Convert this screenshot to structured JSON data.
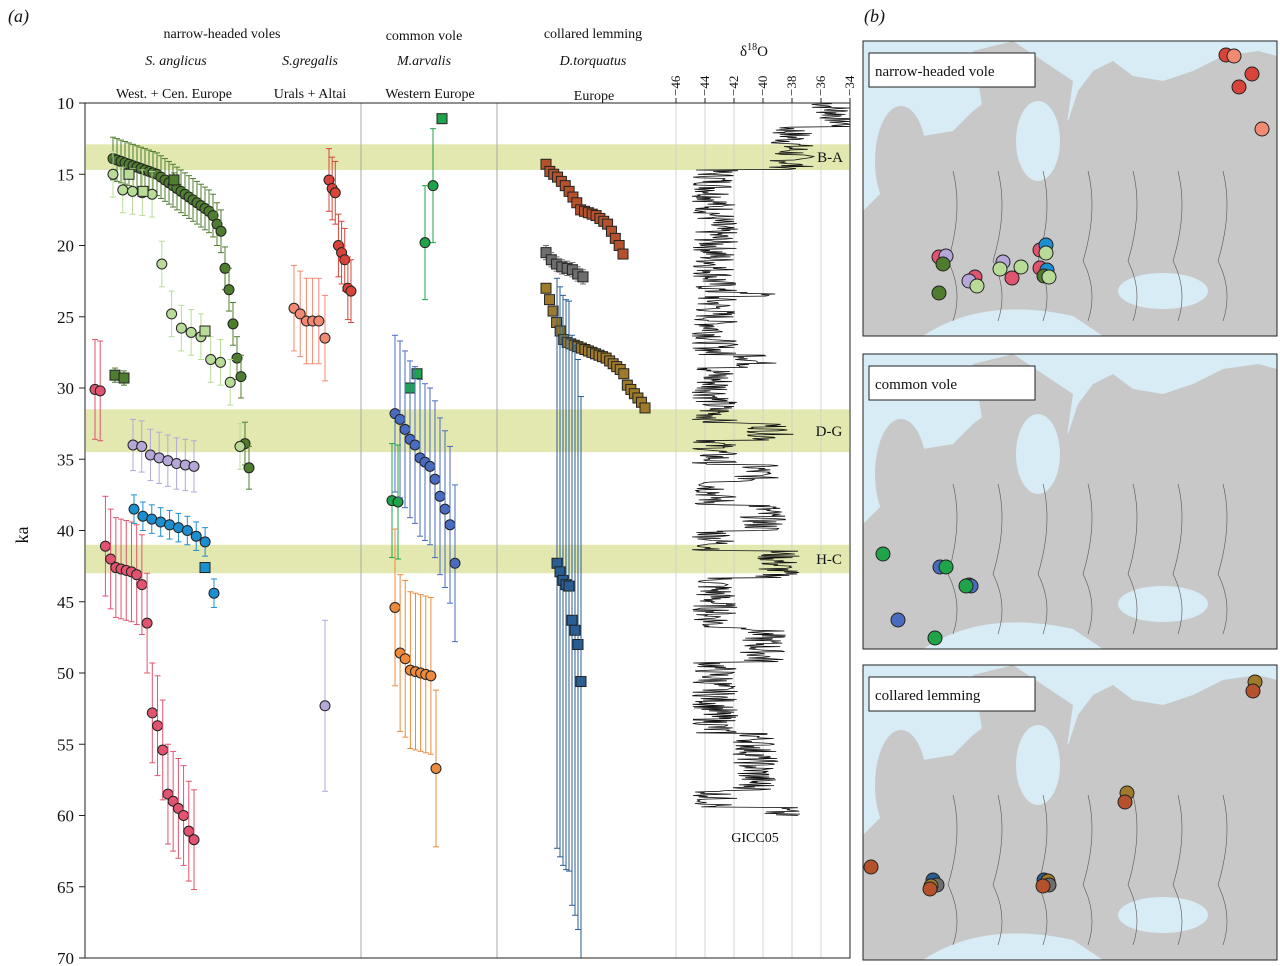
{
  "panel_a_label": "(a)",
  "panel_b_label": "(b)",
  "headers": {
    "narrow_group": "narrow-headed voles",
    "common_group": "common vole",
    "lemming_group": "collared lemming",
    "sp_anglicus": "S. anglicus",
    "sp_gregalis": "S.gregalis",
    "sp_arvalis": "M.arvalis",
    "sp_torquatus": "D.torquatus",
    "reg_anglicus": "West. + Cen. Europe",
    "reg_gregalis": "Urals + Altai",
    "reg_arvalis": "Western Europe",
    "reg_torquatus": "Europe",
    "d18o_title_main": "δ",
    "d18o_title_sup": "18",
    "d18o_title_end": "O",
    "gicc": "GICC05"
  },
  "map_labels": {
    "narrow": "narrow-headed vole",
    "common": "common vole",
    "lemming": "collared lemming"
  },
  "colors": {
    "green_dark": "#4f7d2f",
    "green_light": "#b8dc98",
    "pink": "#e0546f",
    "lavender": "#b5a7d8",
    "blue": "#1c8fd0",
    "red": "#d8443a",
    "salmon": "#f08a72",
    "green": "#1fa44a",
    "royal": "#4a6cc0",
    "orange": "#ee8a3c",
    "rust": "#b5522c",
    "grey": "#6e6e6e",
    "olive": "#9e7a2a",
    "navy": "#2a5d92",
    "band": "#dfe6a6",
    "sea": "#d7ecf4",
    "land": "#c8c8c8"
  },
  "chart_data": {
    "type": "scatter",
    "ylabel": "ka",
    "ylim": [
      70,
      10
    ],
    "yticks": [
      10,
      15,
      20,
      25,
      30,
      35,
      40,
      45,
      50,
      55,
      60,
      65,
      70
    ],
    "d18o_axis": {
      "label": "δ18O",
      "range": [
        -46,
        -34
      ],
      "ticks": [
        -46,
        -44,
        -42,
        -40,
        -38,
        -36,
        -34
      ],
      "record": "GICC05"
    },
    "events": [
      {
        "label": "B-A",
        "from": 12.9,
        "to": 14.7
      },
      {
        "label": "D-G",
        "from": 31.5,
        "to": 34.5
      },
      {
        "label": "H-C",
        "from": 41.0,
        "to": 43.0
      }
    ],
    "series": [
      {
        "name": "S. anglicus",
        "group": "narrow-headed voles",
        "region": "West. + Cen. Europe",
        "color": "#4f7d2f",
        "shape": "circle",
        "ages": [
          13.9,
          14.0,
          14.1,
          14.2,
          14.3,
          14.4,
          14.5,
          14.6,
          14.7,
          14.8,
          14.9,
          15.0,
          15.2,
          15.4,
          15.6,
          15.8,
          16.0,
          16.2,
          16.4,
          16.6,
          16.8,
          17.0,
          17.2,
          17.4,
          17.6,
          17.9,
          18.5,
          19.0,
          21.6,
          23.1,
          25.5,
          27.9,
          29.2,
          33.9,
          35.6
        ],
        "err": 1.5
      },
      {
        "name": "S. anglicus",
        "group": "narrow-headed voles",
        "region": "West. + Cen. Europe",
        "color": "#4f7d2f",
        "shape": "square",
        "ages": [
          15.4,
          29.1,
          29.3
        ],
        "err": 0.5
      },
      {
        "name": "S. anglicus",
        "group": "narrow-headed voles",
        "region": "West. + Cen. Europe",
        "color": "#b8dc98",
        "shape": "circle",
        "ages": [
          15.0,
          16.1,
          16.2,
          16.3,
          16.4,
          21.3,
          24.8,
          25.8,
          26.1,
          26.4,
          28.0,
          28.2,
          29.6,
          34.1
        ],
        "err": 1.6
      },
      {
        "name": "S. anglicus",
        "group": "narrow-headed voles",
        "region": "West. + Cen. Europe",
        "color": "#b8dc98",
        "shape": "square",
        "ages": [
          15.0,
          16.2,
          26.0
        ],
        "err": 0.3
      },
      {
        "name": "S. anglicus",
        "group": "narrow-headed voles",
        "region": "West. + Cen. Europe",
        "color": "#e0546f",
        "shape": "circle",
        "ages": [
          30.1,
          30.2,
          41.1,
          42.0,
          42.6,
          42.7,
          42.8,
          42.9,
          43.1,
          43.8,
          46.5,
          52.8,
          53.7,
          55.4,
          58.5,
          59.0,
          59.5,
          60.0,
          61.1,
          61.7
        ],
        "err": 3.5
      },
      {
        "name": "S. anglicus",
        "group": "narrow-headed voles",
        "region": "West. + Cen. Europe",
        "color": "#b5a7d8",
        "shape": "circle",
        "ages": [
          34.0,
          34.1,
          34.7,
          34.9,
          35.1,
          35.3,
          35.4,
          35.5
        ],
        "err": 1.8
      },
      {
        "name": "S. anglicus",
        "group": "narrow-headed voles",
        "region": "West. + Cen. Europe",
        "color": "#1c8fd0",
        "shape": "circle",
        "ages": [
          38.5,
          39.0,
          39.2,
          39.4,
          39.6,
          39.8,
          40.0,
          40.4,
          40.8,
          44.4
        ],
        "err": 1.0
      },
      {
        "name": "S. anglicus",
        "group": "narrow-headed voles",
        "region": "West. + Cen. Europe",
        "color": "#1c8fd0",
        "shape": "square",
        "ages": [
          42.6
        ],
        "err": 0.2
      },
      {
        "name": "S.gregalis",
        "group": "narrow-headed voles",
        "region": "Urals + Altai",
        "color": "#d8443a",
        "shape": "circle",
        "ages": [
          15.4,
          16.0,
          16.3,
          20.0,
          20.5,
          21.0,
          23.0,
          23.2
        ],
        "err": 2.2
      },
      {
        "name": "S.gregalis",
        "group": "narrow-headed voles",
        "region": "Urals + Altai",
        "color": "#f08a72",
        "shape": "circle",
        "ages": [
          24.4,
          24.8,
          25.3,
          25.3,
          25.3,
          26.5
        ],
        "err": 3.0
      },
      {
        "name": "S.gregalis",
        "group": "narrow-headed voles",
        "region": "Urals + Altai",
        "color": "#b5a7d8",
        "shape": "circle",
        "ages": [
          52.3
        ],
        "err": 6.0
      },
      {
        "name": "M.arvalis",
        "group": "common vole",
        "region": "Western Europe",
        "color": "#1fa44a",
        "shape": "circle",
        "ages": [
          15.8,
          19.8,
          37.9,
          38.0
        ],
        "err": 4.0
      },
      {
        "name": "M.arvalis",
        "group": "common vole",
        "region": "Western Europe",
        "color": "#1fa44a",
        "shape": "square",
        "ages": [
          11.1,
          29.0,
          30.0
        ],
        "err": 0.3
      },
      {
        "name": "M.arvalis",
        "group": "common vole",
        "region": "Western Europe",
        "color": "#4a6cc0",
        "shape": "circle",
        "ages": [
          31.8,
          32.2,
          32.9,
          33.6,
          34.0,
          34.9,
          35.2,
          35.5,
          36.4,
          37.6,
          38.5,
          39.6,
          42.3
        ],
        "err": 5.5
      },
      {
        "name": "M.arvalis",
        "group": "common vole",
        "region": "Western Europe",
        "color": "#ee8a3c",
        "shape": "circle",
        "ages": [
          45.4,
          48.6,
          49.0,
          49.8,
          49.9,
          50.0,
          50.1,
          50.2,
          56.7
        ],
        "err": 5.5
      },
      {
        "name": "D.torquatus",
        "group": "collared lemming",
        "region": "Europe",
        "color": "#b5522c",
        "shape": "square",
        "ages": [
          14.3,
          14.8,
          15.0,
          15.2,
          15.5,
          15.8,
          16.2,
          16.6,
          17.0,
          17.5,
          17.6,
          17.7,
          17.8,
          17.9,
          18.1,
          18.3,
          18.5,
          19.0,
          19.5,
          20.0,
          20.6
        ],
        "err": 0.3
      },
      {
        "name": "D.torquatus",
        "group": "collared lemming",
        "region": "Europe",
        "color": "#6e6e6e",
        "shape": "square",
        "ages": [
          20.5,
          21.0,
          21.3,
          21.5,
          21.6,
          21.7,
          22.0,
          22.2
        ],
        "err": 0.5
      },
      {
        "name": "D.torquatus",
        "group": "collared lemming",
        "region": "Europe",
        "color": "#9e7a2a",
        "shape": "square",
        "ages": [
          23.0,
          23.8,
          24.6,
          25.4,
          26.0,
          26.6,
          26.8,
          26.9,
          27.0,
          27.1,
          27.2,
          27.3,
          27.4,
          27.5,
          27.6,
          27.7,
          27.8,
          27.9,
          28.1,
          28.3,
          28.5,
          28.7,
          29.0,
          29.8,
          30.1,
          30.4,
          30.7,
          31.0,
          31.4
        ],
        "err": 0.3
      },
      {
        "name": "D.torquatus",
        "group": "collared lemming",
        "region": "Europe",
        "color": "#2a5d92",
        "shape": "square",
        "ages": [
          42.3,
          42.9,
          43.5,
          43.8,
          43.9,
          46.3,
          47.0,
          48.0,
          50.6
        ],
        "err": 20.0
      }
    ]
  }
}
